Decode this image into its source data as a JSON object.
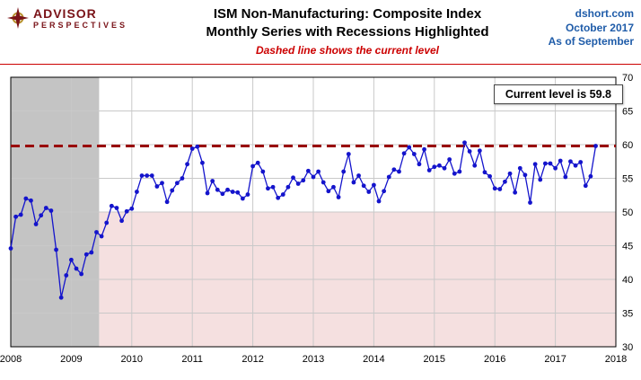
{
  "header": {
    "logo": {
      "line1": "ADVISOR",
      "line2": "PERSPECTIVES"
    },
    "title_line1": "ISM Non-Manufacturing: Composite Index",
    "title_line2": "Monthly Series with Recessions Highlighted",
    "subtitle": "Dashed line shows the current level",
    "source": {
      "site": "dshort.com",
      "date": "October 2017",
      "as_of": "As of September"
    }
  },
  "annotation": {
    "text": "Current level is 59.8"
  },
  "chart_data": {
    "type": "line",
    "title": "ISM Non-Manufacturing: Composite Index",
    "subtitle": "Monthly Series with Recessions Highlighted",
    "note": "Dashed line shows the current level",
    "x_start": {
      "year": 2008,
      "month": 1
    },
    "x_frequency": "monthly",
    "values": [
      44.6,
      49.3,
      49.6,
      52.0,
      51.7,
      48.2,
      49.5,
      50.6,
      50.2,
      44.4,
      37.3,
      40.6,
      42.9,
      41.6,
      40.8,
      43.7,
      44.0,
      47.0,
      46.4,
      48.4,
      50.9,
      50.6,
      48.7,
      50.1,
      50.5,
      53.0,
      55.4,
      55.4,
      55.4,
      53.8,
      54.3,
      51.5,
      53.2,
      54.3,
      55.0,
      57.1,
      59.4,
      59.7,
      57.3,
      52.8,
      54.6,
      53.3,
      52.7,
      53.3,
      53.0,
      52.9,
      52.0,
      52.6,
      56.8,
      57.3,
      56.0,
      53.5,
      53.7,
      52.1,
      52.6,
      53.7,
      55.1,
      54.2,
      54.7,
      56.1,
      55.2,
      56.0,
      54.4,
      53.1,
      53.7,
      52.2,
      56.0,
      58.6,
      54.4,
      55.4,
      53.9,
      53.0,
      54.0,
      51.6,
      53.1,
      55.2,
      56.3,
      56.0,
      58.7,
      59.6,
      58.6,
      57.1,
      59.3,
      56.2,
      56.7,
      56.9,
      56.5,
      57.8,
      55.7,
      56.0,
      60.3,
      59.0,
      56.9,
      59.1,
      55.9,
      55.3,
      53.5,
      53.4,
      54.5,
      55.7,
      52.9,
      56.5,
      55.5,
      51.4,
      57.1,
      54.8,
      57.2,
      57.2,
      56.5,
      57.6,
      55.2,
      57.5,
      56.9,
      57.4,
      53.9,
      55.3,
      59.8
    ],
    "xlim": [
      2008,
      2018
    ],
    "ylim": [
      30,
      70
    ],
    "yticks": [
      30,
      35,
      40,
      45,
      50,
      55,
      60,
      65,
      70
    ],
    "xticks": [
      2008,
      2009,
      2010,
      2011,
      2012,
      2013,
      2014,
      2015,
      2016,
      2017,
      2018
    ],
    "current_level": 59.8,
    "recession_band": {
      "x0": 2008.0,
      "x1": 2009.46
    },
    "contraction_zone": {
      "below": 50
    },
    "legend_position": "none",
    "grid": true,
    "colors": {
      "line": "#1414cc",
      "dashed": "#990000",
      "recession": "#c4c4c4",
      "contraction": "#f5e0e0",
      "grid": "#c9c9c9",
      "accent_red": "#cc0000",
      "accent_blue": "#1f5ca9",
      "logo_maroon": "#7a1318",
      "logo_gold": "#b8912f"
    }
  }
}
